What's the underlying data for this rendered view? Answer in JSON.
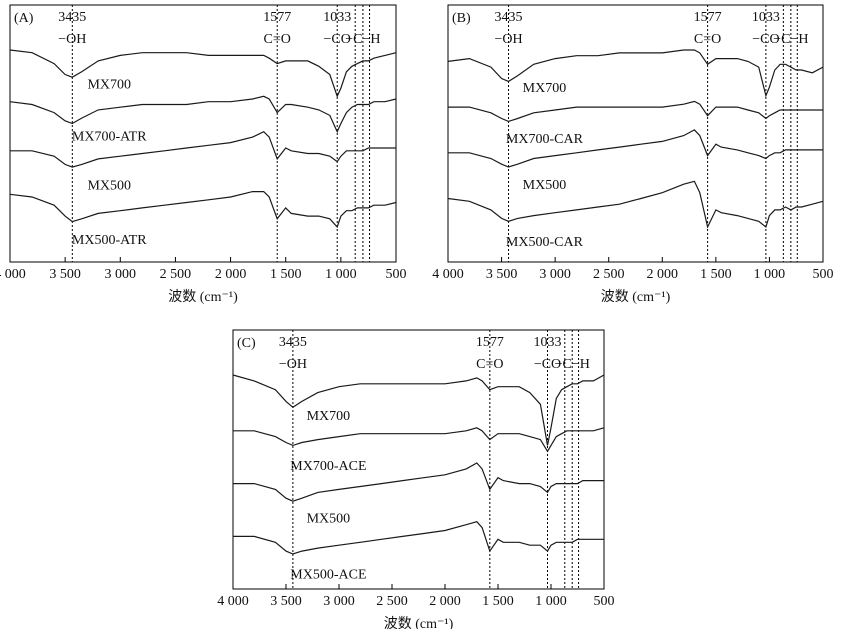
{
  "chart_data": [
    {
      "type": "line",
      "panel_label": "(A)",
      "x_label": "波数 (cm⁻¹)",
      "color": "#1a1a1a",
      "xlim": [
        4000,
        500
      ],
      "xticks": [
        {
          "value": 4000,
          "label": "4 000"
        },
        {
          "value": 3500,
          "label": "3 500"
        },
        {
          "value": 3000,
          "label": "3 000"
        },
        {
          "value": 2500,
          "label": "2 500"
        },
        {
          "value": 2000,
          "label": "2 000"
        },
        {
          "value": 1500,
          "label": "1 500"
        },
        {
          "value": 1000,
          "label": "1 000"
        },
        500
      ],
      "x": [
        4000,
        3800,
        3600,
        3500,
        3435,
        3350,
        3200,
        3000,
        2800,
        2600,
        2400,
        2200,
        2000,
        1800,
        1700,
        1650,
        1577,
        1500,
        1450,
        1300,
        1200,
        1100,
        1033,
        1000,
        950,
        900,
        850,
        800,
        750,
        700,
        600,
        500
      ],
      "series": [
        {
          "name": "MX700",
          "values": [
            82,
            81,
            77,
            73,
            72,
            74,
            78,
            80,
            81,
            81,
            81,
            80,
            80,
            80,
            80,
            79,
            77,
            78,
            78,
            78,
            76,
            73,
            65,
            68,
            74,
            76,
            77,
            78,
            78,
            79,
            80,
            81
          ]
        },
        {
          "name": "MX700-ATR",
          "values": [
            63,
            62,
            59,
            56,
            55,
            57,
            60,
            61,
            62,
            62,
            62,
            63,
            63,
            64,
            65,
            64,
            59,
            62,
            62,
            61,
            60,
            58,
            52,
            55,
            59,
            61,
            62,
            62,
            62,
            63,
            63,
            64
          ]
        },
        {
          "name": "MX500",
          "values": [
            45,
            45,
            43,
            40,
            39,
            40,
            42,
            43,
            44,
            45,
            46,
            47,
            48,
            50,
            52,
            50,
            42,
            46,
            45,
            44,
            44,
            43,
            41,
            43,
            45,
            45,
            45,
            45,
            46,
            46,
            46,
            46
          ]
        },
        {
          "name": "MX500-ATR",
          "values": [
            29,
            28,
            25,
            21,
            19,
            20,
            22,
            23,
            24,
            25,
            26,
            27,
            28,
            30,
            30,
            28,
            20,
            24,
            22,
            21,
            21,
            20,
            17,
            21,
            23,
            23,
            24,
            24,
            24,
            25,
            25,
            26
          ]
        }
      ],
      "markers": [
        {
          "x": 3435,
          "label": "−OH"
        },
        {
          "x": 1577,
          "label": "C=O"
        },
        {
          "x": 1033,
          "label": "−CO"
        }
      ],
      "ch_lines": {
        "x": [
          870,
          800,
          740
        ],
        "label": "−C−H"
      }
    },
    {
      "type": "line",
      "panel_label": "(B)",
      "x_label": "波数 (cm⁻¹)",
      "color": "#1a1a1a",
      "xlim": [
        4000,
        500
      ],
      "xticks": [
        {
          "value": 4000,
          "label": "4 000"
        },
        {
          "value": 3500,
          "label": "3 500"
        },
        {
          "value": 3000,
          "label": "3 000"
        },
        {
          "value": 2500,
          "label": "2 500"
        },
        {
          "value": 2000,
          "label": "2 000"
        },
        {
          "value": 1500,
          "label": "1 500"
        },
        {
          "value": 1000,
          "label": "1 000"
        },
        500
      ],
      "x": [
        4000,
        3800,
        3600,
        3500,
        3435,
        3350,
        3200,
        3000,
        2800,
        2600,
        2400,
        2200,
        2000,
        1800,
        1700,
        1650,
        1577,
        1500,
        1450,
        1300,
        1200,
        1100,
        1033,
        1000,
        950,
        900,
        850,
        800,
        750,
        700,
        600,
        500
      ],
      "series": [
        {
          "name": "MX700",
          "values": [
            76,
            77,
            74,
            70,
            69,
            71,
            75,
            77,
            78,
            78,
            79,
            79,
            79,
            80,
            80,
            79,
            75,
            77,
            77,
            77,
            76,
            74,
            64,
            67,
            73,
            75,
            75,
            74,
            73,
            73,
            72,
            74
          ]
        },
        {
          "name": "MX700-CAR",
          "values": [
            60,
            60,
            58,
            56,
            55,
            56,
            58,
            59,
            60,
            60,
            60,
            60,
            60,
            61,
            62,
            61,
            57,
            60,
            60,
            60,
            59,
            58,
            56,
            57,
            58,
            59,
            59,
            59,
            59,
            59,
            59,
            59
          ]
        },
        {
          "name": "MX500",
          "values": [
            44,
            44,
            42,
            40,
            39,
            40,
            42,
            43,
            44,
            45,
            46,
            47,
            48,
            50,
            52,
            50,
            43,
            47,
            46,
            45,
            44,
            43,
            42,
            43,
            44,
            44,
            45,
            45,
            45,
            45,
            45,
            45
          ]
        },
        {
          "name": "MX500-CAR",
          "values": [
            28,
            27,
            24,
            21,
            20,
            21,
            22,
            23,
            24,
            25,
            26,
            28,
            30,
            33,
            34,
            30,
            18,
            24,
            23,
            22,
            21,
            20,
            18,
            22,
            24,
            24,
            25,
            24,
            25,
            25,
            26,
            27
          ]
        }
      ],
      "markers": [
        {
          "x": 3435,
          "label": "−OH"
        },
        {
          "x": 1577,
          "label": "C=O"
        },
        {
          "x": 1033,
          "label": "−CO"
        }
      ],
      "ch_lines": {
        "x": [
          870,
          800,
          740
        ],
        "label": "−C−H"
      }
    },
    {
      "type": "line",
      "panel_label": "(C)",
      "x_label": "波数 (cm⁻¹)",
      "color": "#1a1a1a",
      "xlim": [
        4000,
        500
      ],
      "xticks": [
        {
          "value": 4000,
          "label": "4 000"
        },
        {
          "value": 3500,
          "label": "3 500"
        },
        {
          "value": 3000,
          "label": "3 000"
        },
        {
          "value": 2500,
          "label": "2 500"
        },
        {
          "value": 2000,
          "label": "2 000"
        },
        {
          "value": 1500,
          "label": "1 500"
        },
        {
          "value": 1000,
          "label": "1 000"
        },
        500
      ],
      "x": [
        4000,
        3800,
        3600,
        3500,
        3435,
        3350,
        3200,
        3000,
        2800,
        2600,
        2400,
        2200,
        2000,
        1800,
        1700,
        1650,
        1577,
        1500,
        1450,
        1300,
        1200,
        1100,
        1033,
        1000,
        950,
        900,
        850,
        800,
        750,
        700,
        600,
        500
      ],
      "series": [
        {
          "name": "MX700",
          "values": [
            82,
            80,
            77,
            73,
            71,
            73,
            76,
            78,
            79,
            79,
            79,
            79,
            79,
            80,
            81,
            80,
            77,
            78,
            78,
            78,
            76,
            72,
            58,
            64,
            74,
            77,
            78,
            79,
            79,
            80,
            80,
            82
          ]
        },
        {
          "name": "MX700-ACE",
          "values": [
            63,
            63,
            61,
            59,
            58,
            59,
            60,
            61,
            62,
            62,
            62,
            62,
            62,
            63,
            64,
            63,
            60,
            62,
            62,
            62,
            61,
            60,
            56,
            58,
            61,
            62,
            63,
            63,
            63,
            63,
            63,
            64
          ]
        },
        {
          "name": "MX500",
          "values": [
            45,
            45,
            43,
            40,
            39,
            40,
            42,
            43,
            44,
            45,
            46,
            47,
            48,
            50,
            52,
            50,
            43,
            47,
            46,
            45,
            45,
            44,
            42,
            44,
            45,
            45,
            45,
            45,
            45,
            46,
            46,
            46
          ]
        },
        {
          "name": "MX500-ACE",
          "values": [
            27,
            27,
            25,
            22,
            21,
            22,
            23,
            24,
            25,
            26,
            27,
            28,
            29,
            31,
            32,
            30,
            22,
            26,
            25,
            25,
            24,
            24,
            22,
            24,
            25,
            25,
            25,
            25,
            26,
            26,
            26,
            26
          ]
        }
      ],
      "markers": [
        {
          "x": 3435,
          "label": "−OH"
        },
        {
          "x": 1577,
          "label": "C=O"
        },
        {
          "x": 1033,
          "label": "−CO"
        }
      ],
      "ch_lines": {
        "x": [
          870,
          800,
          740
        ],
        "label": "−C−H"
      }
    }
  ]
}
